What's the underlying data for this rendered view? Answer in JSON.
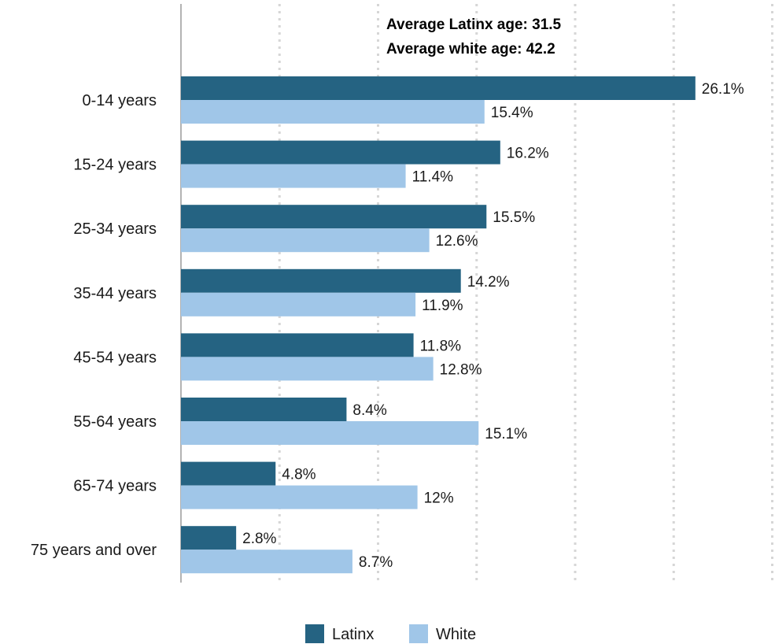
{
  "chart_data": {
    "type": "bar",
    "orientation": "horizontal",
    "categories": [
      "0-14 years",
      "15-24 years",
      "25-34 years",
      "35-44 years",
      "45-54 years",
      "55-64 years",
      "65-74 years",
      "75 years and over"
    ],
    "series": [
      {
        "name": "Latinx",
        "values": [
          26.1,
          16.2,
          15.5,
          14.2,
          11.8,
          8.4,
          4.8,
          2.8
        ],
        "labels": [
          "26.1%",
          "16.2%",
          "15.5%",
          "14.2%",
          "11.8%",
          "8.4%",
          "4.8%",
          "2.8%"
        ],
        "color": "#256382"
      },
      {
        "name": "White",
        "values": [
          15.4,
          11.4,
          12.6,
          11.9,
          12.8,
          15.1,
          12,
          8.7
        ],
        "labels": [
          "15.4%",
          "11.4%",
          "12.6%",
          "11.9%",
          "12.8%",
          "15.1%",
          "12%",
          "8.7%"
        ],
        "color": "#a0c6e8"
      }
    ],
    "xlim": [
      0,
      30
    ],
    "grid": true,
    "legend_position": "bottom-center",
    "annotations": [
      "Average Latinx age: 31.5",
      "Average white age: 42.2"
    ]
  }
}
